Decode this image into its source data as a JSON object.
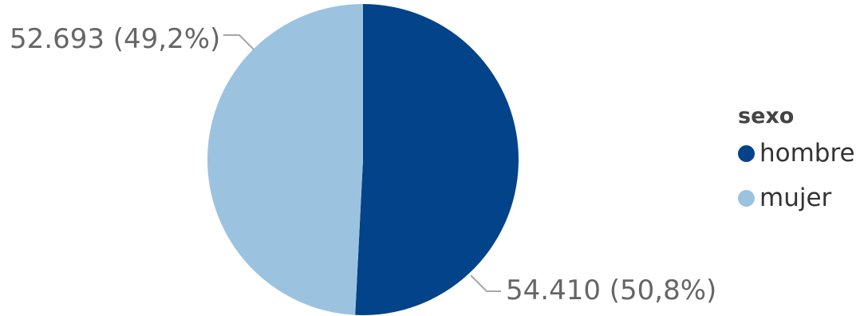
{
  "chart_data": {
    "type": "pie",
    "legend_title": "sexo",
    "legend_position": "right",
    "slices": [
      {
        "name": "hombre",
        "value": 54410,
        "percent": 50.8,
        "label": "54.410 (50,8%)",
        "color": "#03438A"
      },
      {
        "name": "mujer",
        "value": 52693,
        "percent": 49.2,
        "label": "52.693 (49,2%)",
        "color": "#9BC3E0"
      }
    ]
  }
}
